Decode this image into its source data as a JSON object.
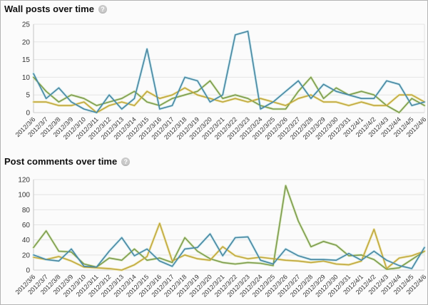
{
  "ui": {
    "help_glyph": "?"
  },
  "colors": {
    "grid": "#e4e4e4",
    "axis": "#c6c6c6",
    "background": "#fbfbfb",
    "tick_text": "#333333"
  },
  "chart_data": [
    {
      "type": "line",
      "title": "Wall posts over time",
      "grid": true,
      "legend": "none",
      "xlabel": "",
      "ylabel": "",
      "ylim": [
        0,
        25
      ],
      "yticks": [
        0,
        5,
        10,
        15,
        20,
        25
      ],
      "categories": [
        "2012/3/6",
        "2012/3/7",
        "2012/3/8",
        "2012/3/9",
        "2012/3/10",
        "2012/3/11",
        "2012/3/12",
        "2012/3/13",
        "2012/3/14",
        "2012/3/15",
        "2012/3/16",
        "2012/3/17",
        "2012/3/18",
        "2012/3/19",
        "2012/3/20",
        "2012/3/21",
        "2012/3/22",
        "2012/3/23",
        "2012/3/24",
        "2012/3/25",
        "2012/3/26",
        "2012/3/27",
        "2012/3/28",
        "2012/3/29",
        "2012/3/30",
        "2012/3/31",
        "2012/4/1",
        "2012/4/2",
        "2012/4/3",
        "2012/4/4",
        "2012/4/5",
        "2012/4/6"
      ],
      "series": [
        {
          "name": "green",
          "color": "#7d9b4e",
          "glow": "#dcebc4",
          "values": [
            10,
            6,
            3,
            5,
            4,
            2,
            3,
            4,
            6,
            3,
            2,
            4,
            5,
            6,
            9,
            4,
            5,
            4,
            2,
            1,
            1,
            6,
            10,
            4,
            7,
            5,
            6,
            5,
            2,
            0,
            4,
            2
          ]
        },
        {
          "name": "yellow",
          "color": "#c0a83e",
          "glow": "#efe9b9",
          "values": [
            3,
            3,
            2,
            2,
            3,
            0,
            2,
            3,
            2,
            6,
            4,
            5,
            7,
            5,
            4,
            3,
            4,
            3,
            4,
            3,
            2,
            4,
            5,
            3,
            3,
            2,
            3,
            2,
            2,
            5,
            5,
            3
          ]
        },
        {
          "name": "blue",
          "color": "#4a87a0",
          "glow": "#c9e8f0",
          "values": [
            11,
            4,
            7,
            3,
            1,
            0,
            5,
            1,
            4,
            18,
            1,
            2,
            10,
            9,
            3,
            5,
            22,
            23,
            1,
            3,
            6,
            9,
            4,
            8,
            6,
            5,
            4,
            4,
            9,
            8,
            2,
            3
          ]
        }
      ]
    },
    {
      "type": "line",
      "title": "Post comments over time",
      "grid": true,
      "legend": "none",
      "xlabel": "",
      "ylabel": "",
      "ylim": [
        0,
        120
      ],
      "yticks": [
        0,
        20,
        40,
        60,
        80,
        100,
        120
      ],
      "categories": [
        "2012/3/6",
        "2012/3/7",
        "2012/3/8",
        "2012/3/9",
        "2012/3/10",
        "2012/3/11",
        "2012/3/12",
        "2012/3/13",
        "2012/3/14",
        "2012/3/15",
        "2012/3/16",
        "2012/3/17",
        "2012/3/18",
        "2012/3/19",
        "2012/3/20",
        "2012/3/21",
        "2012/3/22",
        "2012/3/23",
        "2012/3/24",
        "2012/3/25",
        "2012/3/26",
        "2012/3/27",
        "2012/3/28",
        "2012/3/29",
        "2012/3/30",
        "2012/3/31",
        "2012/4/1",
        "2012/4/2",
        "2012/4/3",
        "2012/4/4",
        "2012/4/5",
        "2012/4/6"
      ],
      "series": [
        {
          "name": "green",
          "color": "#7d9b4e",
          "glow": "#dcebc4",
          "values": [
            30,
            52,
            25,
            24,
            8,
            4,
            16,
            13,
            28,
            13,
            16,
            10,
            43,
            25,
            15,
            10,
            8,
            10,
            9,
            6,
            112,
            65,
            31,
            38,
            33,
            19,
            20,
            14,
            1,
            3,
            14,
            25
          ]
        },
        {
          "name": "yellow",
          "color": "#c0a83e",
          "glow": "#efe9b9",
          "values": [
            17,
            14,
            18,
            12,
            4,
            3,
            2,
            0,
            7,
            18,
            62,
            12,
            20,
            15,
            13,
            31,
            19,
            15,
            17,
            15,
            13,
            12,
            10,
            12,
            8,
            7,
            12,
            54,
            2,
            16,
            19,
            25
          ]
        },
        {
          "name": "blue",
          "color": "#4a87a0",
          "glow": "#c9e8f0",
          "values": [
            20,
            14,
            12,
            28,
            5,
            4,
            25,
            43,
            19,
            28,
            12,
            5,
            28,
            30,
            48,
            19,
            43,
            44,
            13,
            8,
            28,
            19,
            14,
            14,
            13,
            22,
            13,
            25,
            13,
            6,
            2,
            30
          ]
        }
      ]
    }
  ]
}
